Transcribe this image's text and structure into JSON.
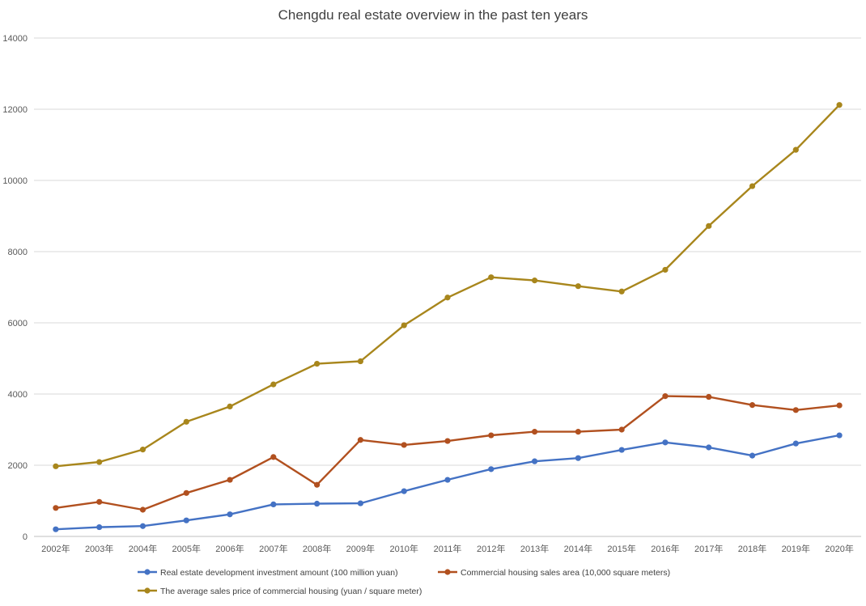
{
  "chart_data": {
    "type": "line",
    "title": "Chengdu real estate overview in the past ten years",
    "xlabel": "",
    "ylabel": "",
    "ylim": [
      0,
      14000
    ],
    "yticks": [
      0,
      2000,
      4000,
      6000,
      8000,
      10000,
      12000,
      14000
    ],
    "ytick_labels": [
      "0",
      "2000",
      "4000",
      "6000",
      "8000",
      "10000",
      "12000",
      "14000"
    ],
    "grid": true,
    "legend_position": "bottom",
    "categories": [
      "2002年",
      "2003年",
      "2004年",
      "2005年",
      "2006年",
      "2007年",
      "2008年",
      "2009年",
      "2010年",
      "2011年",
      "2012年",
      "2013年",
      "2014年",
      "2015年",
      "2016年",
      "2017年",
      "2018年",
      "2019年",
      "2020年"
    ],
    "series": [
      {
        "name": "Real estate development investment amount (100 million yuan)",
        "color": "#4472c4",
        "values": [
          200,
          260,
          290,
          450,
          620,
          900,
          920,
          930,
          1270,
          1590,
          1890,
          2110,
          2200,
          2430,
          2640,
          2500,
          2270,
          2610,
          2840
        ]
      },
      {
        "name": "Commercial housing sales area (10,000 square meters)",
        "color": "#b1501f",
        "values": [
          800,
          970,
          750,
          1220,
          1590,
          2230,
          1450,
          2710,
          2570,
          2680,
          2840,
          2940,
          2940,
          3000,
          3940,
          3920,
          3690,
          3550,
          3680
        ]
      },
      {
        "name": "The average sales price of commercial housing (yuan / square meter)",
        "color": "#a8861c",
        "values": [
          1970,
          2090,
          2440,
          3220,
          3650,
          4270,
          4850,
          4920,
          5930,
          6710,
          7280,
          7190,
          7030,
          6880,
          7490,
          8720,
          9840,
          10860,
          12120
        ]
      }
    ]
  }
}
